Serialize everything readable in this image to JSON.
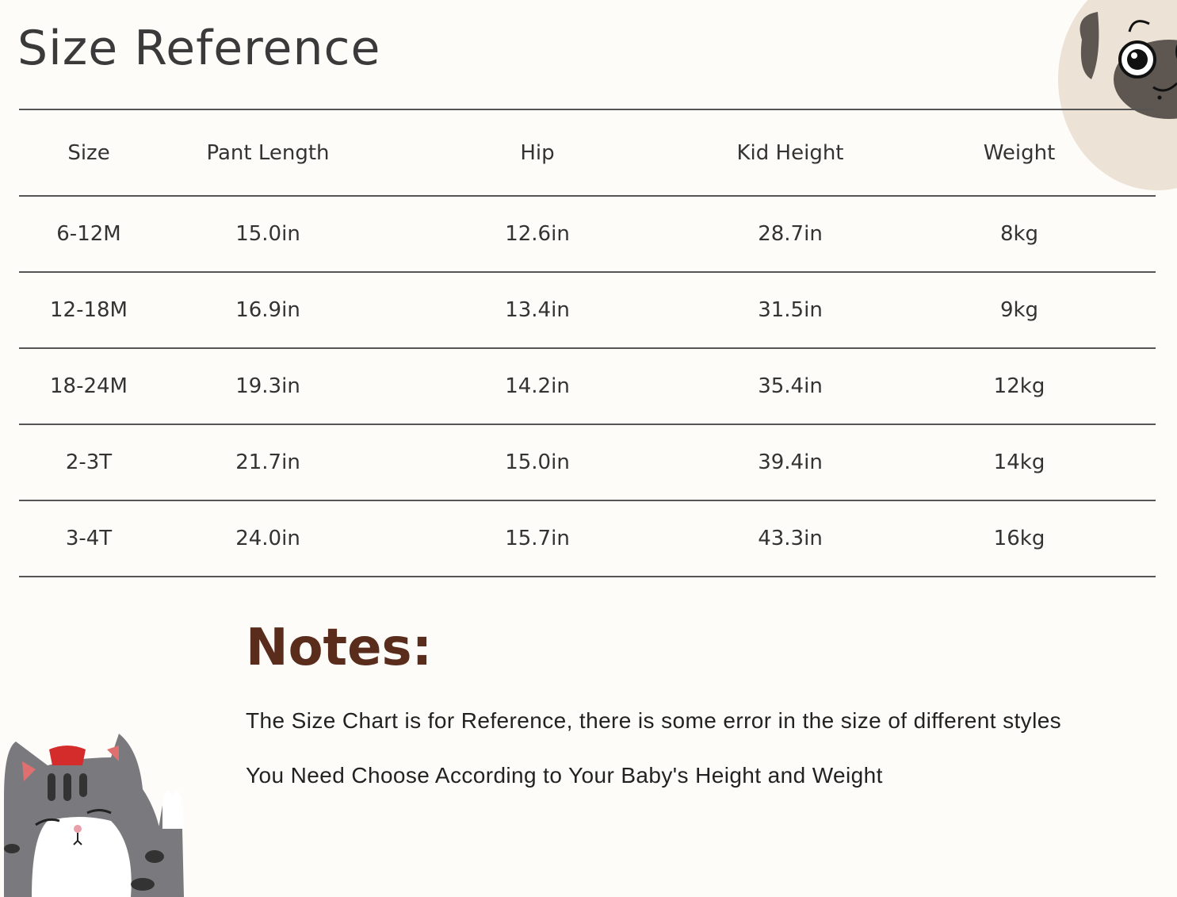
{
  "title": "Size Reference",
  "table": {
    "headers": [
      "Size",
      "Pant Length",
      "Hip",
      "Kid Height",
      "Weight"
    ],
    "rows": [
      [
        "6-12M",
        "15.0in",
        "12.6in",
        "28.7in",
        "8kg"
      ],
      [
        "12-18M",
        "16.9in",
        "13.4in",
        "31.5in",
        "9kg"
      ],
      [
        "18-24M",
        "19.3in",
        "14.2in",
        "35.4in",
        "12kg"
      ],
      [
        "2-3T",
        "21.7in",
        "15.0in",
        "39.4in",
        "14kg"
      ],
      [
        "3-4T",
        "24.0in",
        "15.7in",
        "43.3in",
        "16kg"
      ]
    ]
  },
  "notes": {
    "title": "Notes:",
    "lines": [
      "The Size Chart is for Reference, there is some error in the size of different styles",
      "You Need Choose According to Your Baby's Height and Weight"
    ]
  },
  "colors": {
    "notes_title": "#5a2c1c",
    "rule": "#555555",
    "background": "#fdfcf8"
  },
  "illustrations": [
    "pug-face",
    "gray-tabby-cat"
  ]
}
